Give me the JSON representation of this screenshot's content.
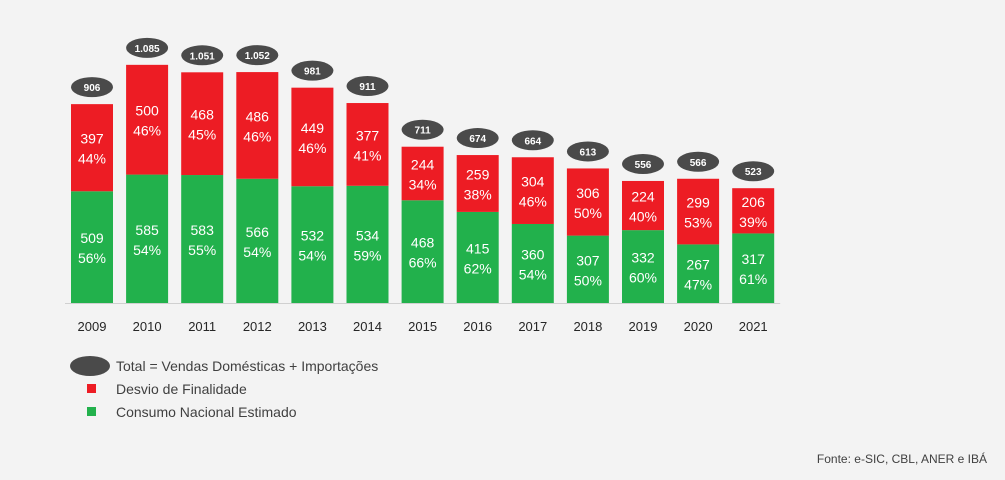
{
  "chart_data": {
    "type": "bar",
    "stacked": true,
    "categories": [
      "2009",
      "2010",
      "2011",
      "2012",
      "2013",
      "2014",
      "2015",
      "2016",
      "2017",
      "2018",
      "2019",
      "2020",
      "2021"
    ],
    "series": [
      {
        "name": "Consumo Nacional Estimado",
        "color": "#22b14c",
        "values": [
          509,
          585,
          583,
          566,
          532,
          534,
          468,
          415,
          360,
          307,
          332,
          267,
          317
        ],
        "percent_labels": [
          "56%",
          "54%",
          "55%",
          "54%",
          "54%",
          "59%",
          "66%",
          "62%",
          "54%",
          "50%",
          "60%",
          "47%",
          "61%"
        ]
      },
      {
        "name": "Desvio de Finalidade",
        "color": "#ed1c24",
        "values": [
          397,
          500,
          468,
          486,
          449,
          377,
          244,
          259,
          304,
          306,
          224,
          299,
          206
        ],
        "percent_labels": [
          "44%",
          "46%",
          "45%",
          "46%",
          "46%",
          "41%",
          "34%",
          "38%",
          "46%",
          "50%",
          "40%",
          "53%",
          "39%"
        ]
      }
    ],
    "totals": {
      "name": "Total = Vendas Domésticas + Importações",
      "color": "#4a4a4a",
      "labels": [
        "906",
        "1.085",
        "1.051",
        "1.052",
        "981",
        "911",
        "711",
        "674",
        "664",
        "613",
        "556",
        "566",
        "523"
      ]
    },
    "ylim": [
      0,
      1100
    ],
    "grid": false,
    "legend_position": "bottom-left"
  },
  "legend": {
    "total": "Total = Vendas Domésticas + Importações",
    "desvio": "Desvio de Finalidade",
    "consumo": "Consumo Nacional Estimado"
  },
  "source": "Fonte: e-SIC, CBL, ANER e IBÁ"
}
